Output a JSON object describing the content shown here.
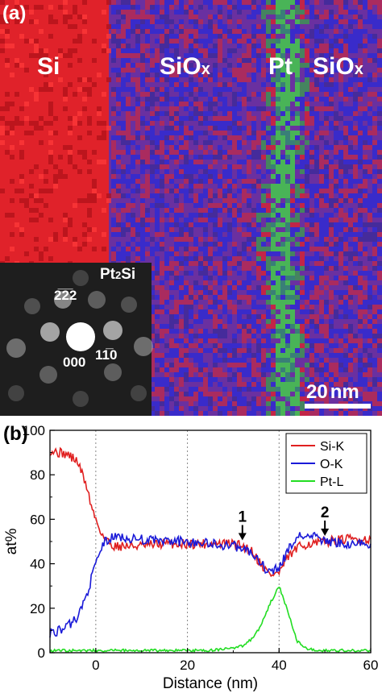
{
  "panel_a": {
    "label": "(a)",
    "regions": {
      "si": "Si",
      "siox_left_base": "SiO",
      "siox_left_sub": "x",
      "pt": "Pt",
      "siox_right_base": "SiO",
      "siox_right_sub": "x"
    },
    "inset": {
      "phase_base": "Pt",
      "phase_sub": "2",
      "phase_tail": "Si",
      "spot_top": "2̅2̅2",
      "spot_center": "000",
      "spot_right": "11̅0"
    },
    "scale_bar": {
      "number": "20",
      "unit": "nm"
    },
    "colors": {
      "si": "#e0222a",
      "o": "#2a2ad8",
      "pt": "#3fe03f",
      "mix": "#6a30a0"
    }
  },
  "chart_data": {
    "type": "line",
    "panel_label": "(b)",
    "xlabel": "Distance (nm)",
    "ylabel": "at%",
    "xlim": [
      -10,
      60
    ],
    "ylim": [
      0,
      100
    ],
    "xticks": [
      "0",
      "20",
      "40",
      "60"
    ],
    "yticks": [
      "0",
      "20",
      "40",
      "60",
      "80",
      "100"
    ],
    "grid": false,
    "vlines": [
      0,
      20,
      40
    ],
    "legend_position": "top-right",
    "x": [
      -10,
      -8,
      -6,
      -4,
      -2,
      -1,
      0,
      1,
      2,
      4,
      6,
      8,
      10,
      15,
      20,
      25,
      30,
      32,
      34,
      36,
      38,
      40,
      42,
      44,
      46,
      48,
      50,
      55,
      60
    ],
    "series": [
      {
        "name": "Si-K",
        "color": "#e02020",
        "values": [
          91,
          90,
          89,
          86,
          75,
          66,
          60,
          55,
          51,
          48,
          48,
          48,
          48,
          49,
          49,
          49,
          49,
          48,
          46,
          40,
          35,
          36,
          43,
          47,
          49,
          49,
          50,
          51,
          51
        ]
      },
      {
        "name": "O-K",
        "color": "#1a1ad8",
        "values": [
          9,
          10,
          12,
          16,
          26,
          33,
          40,
          46,
          50,
          52,
          52,
          51,
          51,
          50,
          50,
          49,
          48,
          47,
          45,
          40,
          36,
          38,
          46,
          52,
          53,
          52,
          50,
          49,
          49
        ]
      },
      {
        "name": "Pt-L",
        "color": "#22dd22",
        "values": [
          1,
          1,
          1,
          1,
          1,
          1,
          1,
          1,
          1,
          1,
          1,
          1,
          1,
          1,
          1,
          1,
          2,
          3,
          6,
          12,
          22,
          30,
          18,
          5,
          2,
          1,
          1,
          1,
          1
        ]
      }
    ],
    "annotations": [
      {
        "text": "1",
        "x": 32,
        "y": 48
      },
      {
        "text": "2",
        "x": 50,
        "y": 50
      }
    ]
  }
}
